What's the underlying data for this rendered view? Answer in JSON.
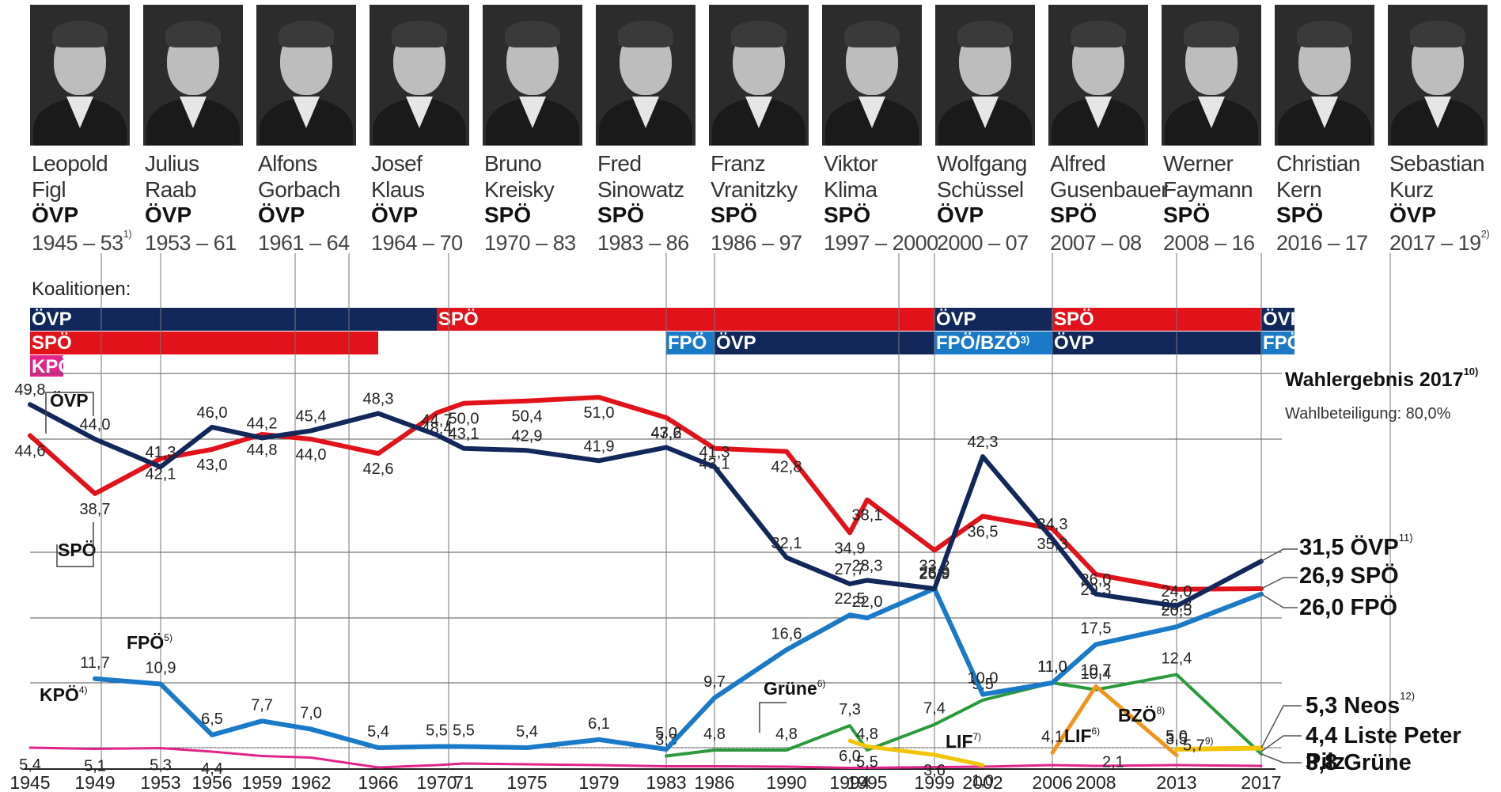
{
  "chancellors": [
    {
      "first": "Leopold",
      "last": "Figl",
      "party": "ÖVP",
      "years": "1945 – 53",
      "note": "1)"
    },
    {
      "first": "Julius",
      "last": "Raab",
      "party": "ÖVP",
      "years": "1953 – 61",
      "note": ""
    },
    {
      "first": "Alfons",
      "last": "Gorbach",
      "party": "ÖVP",
      "years": "1961 – 64",
      "note": ""
    },
    {
      "first": "Josef",
      "last": "Klaus",
      "party": "ÖVP",
      "years": "1964 – 70",
      "note": ""
    },
    {
      "first": "Bruno",
      "last": "Kreisky",
      "party": "SPÖ",
      "years": "1970 – 83",
      "note": ""
    },
    {
      "first": "Fred",
      "last": "Sinowatz",
      "party": "SPÖ",
      "years": "1983 – 86",
      "note": ""
    },
    {
      "first": "Franz",
      "last": "Vranitzky",
      "party": "SPÖ",
      "years": "1986 – 97",
      "note": ""
    },
    {
      "first": "Viktor",
      "last": "Klima",
      "party": "SPÖ",
      "years": "1997 – 2000",
      "note": ""
    },
    {
      "first": "Wolfgang",
      "last": "Schüssel",
      "party": "ÖVP",
      "years": "2000 – 07",
      "note": ""
    },
    {
      "first": "Alfred",
      "last": "Gusenbauer",
      "party": "SPÖ",
      "years": "2007 – 08",
      "note": ""
    },
    {
      "first": "Werner",
      "last": "Faymann",
      "party": "SPÖ",
      "years": "2008 – 16",
      "note": ""
    },
    {
      "first": "Christian",
      "last": "Kern",
      "party": "SPÖ",
      "years": "2016 – 17",
      "note": ""
    },
    {
      "first": "Sebastian",
      "last": "Kurz",
      "party": "ÖVP",
      "years": "2017 – 19",
      "note": "2)"
    }
  ],
  "coalitions": {
    "label": "Koalitionen:",
    "rows": [
      [
        {
          "from": 1945,
          "to": 1970,
          "party": "ÖVP",
          "color": "#13285a"
        },
        {
          "from": 1970,
          "to": 1999,
          "party": "SPÖ",
          "color": "#e2121b"
        },
        {
          "from": 1999,
          "to": 2006,
          "party": "ÖVP",
          "color": "#13285a"
        },
        {
          "from": 2006,
          "to": 2017,
          "party": "SPÖ",
          "color": "#e2121b"
        },
        {
          "from": 2017,
          "to": 2019,
          "party": "ÖVP",
          "color": "#13285a"
        }
      ],
      [
        {
          "from": 1945,
          "to": 1966,
          "party": "SPÖ",
          "color": "#e2121b"
        },
        {
          "from": 1983,
          "to": 1986,
          "party": "FPÖ",
          "color": "#1a7ac7"
        },
        {
          "from": 1986,
          "to": 1999,
          "party": "ÖVP",
          "color": "#13285a"
        },
        {
          "from": 1999,
          "to": 2006,
          "party": "FPÖ/BZÖ",
          "note": "3)",
          "color": "#1a7ac7"
        },
        {
          "from": 2006,
          "to": 2017,
          "party": "ÖVP",
          "color": "#13285a"
        },
        {
          "from": 2017,
          "to": 2019,
          "party": "FPÖ",
          "color": "#1a7ac7"
        }
      ],
      [
        {
          "from": 1945,
          "to": 1949,
          "party": "KPÖ",
          "color": "#e0248a"
        }
      ]
    ]
  },
  "result": {
    "title": "Wahlergebnis 2017",
    "title_note": "10)",
    "turnout": "Wahlbeteiligung: 80,0%",
    "entries": [
      {
        "value": "31,5",
        "party": "ÖVP",
        "note": "11)"
      },
      {
        "value": "26,9",
        "party": "SPÖ",
        "note": ""
      },
      {
        "value": "26,0",
        "party": "FPÖ",
        "note": ""
      },
      {
        "value": "5,3",
        "party": "Neos",
        "note": "12)"
      },
      {
        "value": "4,4",
        "party": "Liste Peter Pilz",
        "note": ""
      },
      {
        "value": "3,8",
        "party": "Grüne",
        "note": ""
      }
    ]
  },
  "chart_data": {
    "type": "line",
    "x_tick_labels": [
      "1945",
      "1949",
      "1953",
      "1956",
      "1959",
      "1962",
      "1966",
      "1970",
      "71",
      "1975",
      "1979",
      "1983",
      "1986",
      "1990",
      "1994",
      "1995",
      "1999",
      "2002",
      "2006",
      "2008",
      "2013",
      "2017"
    ],
    "series": [
      {
        "name": "ÖVP",
        "color": "#13285a",
        "x": [
          1945,
          1949,
          1953,
          1956,
          1959,
          1962,
          1966,
          1970,
          1971,
          1975,
          1979,
          1983,
          1986,
          1990,
          1994,
          1995,
          1999,
          2002,
          2006,
          2008,
          2013,
          2017
        ],
        "values": [
          49.8,
          44.0,
          41.3,
          46.0,
          44.2,
          45.4,
          48.3,
          44.7,
          43.1,
          42.9,
          41.9,
          43.2,
          41.3,
          32.1,
          27.7,
          28.3,
          26.9,
          42.3,
          34.3,
          26.0,
          24.0,
          31.5
        ],
        "labels": [
          "49,8",
          "44,0",
          "41,3",
          "46,0",
          "44,2",
          "45,4",
          "48,3",
          "44,7",
          "43,1",
          "42,9",
          "41,9",
          "43,2",
          "41,3",
          "32,1",
          "27,7",
          "28,3",
          "26,9",
          "42,3",
          "34,3",
          "26,0",
          "24,0",
          ""
        ]
      },
      {
        "name": "SPÖ",
        "color": "#e2121b",
        "x": [
          1945,
          1949,
          1953,
          1956,
          1959,
          1962,
          1966,
          1970,
          1971,
          1975,
          1979,
          1983,
          1986,
          1990,
          1994,
          1995,
          1999,
          2002,
          2006,
          2008,
          2013,
          2017
        ],
        "values": [
          44.6,
          38.7,
          42.1,
          43.0,
          44.8,
          44.0,
          42.6,
          48.4,
          50.0,
          50.4,
          51.0,
          47.6,
          43.1,
          42.8,
          34.9,
          38.1,
          33.2,
          36.5,
          35.3,
          29.3,
          26.8,
          26.9
        ],
        "labels": [
          "44,6",
          "38,7",
          "42,1",
          "43,0",
          "44,8",
          "44,0",
          "42,6",
          "48,4",
          "50,0",
          "50,4",
          "51,0",
          "47,6",
          "43,1",
          "42,8",
          "34,9",
          "38,1",
          "33,2",
          "36,5",
          "35,3",
          "29,3",
          "26,8",
          ""
        ]
      },
      {
        "name": "FPÖ",
        "color": "#1a7ac7",
        "x": [
          1949,
          1953,
          1956,
          1959,
          1962,
          1966,
          1970,
          1971,
          1975,
          1979,
          1983,
          1986,
          1990,
          1994,
          1995,
          1999,
          2002,
          2006,
          2008,
          2013,
          2017
        ],
        "values": [
          11.7,
          10.9,
          6.5,
          7.7,
          7.0,
          5.4,
          5.5,
          5.5,
          5.4,
          6.1,
          5.0,
          9.7,
          16.6,
          22.5,
          22.0,
          26.9,
          10.0,
          11.0,
          17.5,
          20.5,
          26.0
        ],
        "labels": [
          "11,7",
          "10,9",
          "6,5",
          "7,7",
          "7,0",
          "5,4",
          "5,5",
          "5,5",
          "5,4",
          "6,1",
          "5,0",
          "9,7",
          "16,6",
          "22,5",
          "22,0",
          "26,9",
          "10,0",
          "11,0",
          "17,5",
          "20,5",
          ""
        ]
      },
      {
        "name": "KPÖ",
        "color": "#e0248a",
        "x": [
          1945,
          1949,
          1953,
          1956,
          1959,
          1962,
          1966,
          1970,
          1971,
          1975,
          1979,
          1983,
          1986,
          1990,
          1994,
          1995,
          1999,
          2002,
          2006,
          2008,
          2013,
          2017
        ],
        "values": [
          5.4,
          5.1,
          5.3,
          4.4,
          3.3,
          2.9,
          0.4,
          1.0,
          1.4,
          1.2,
          1.0,
          0.7,
          0.7,
          0.6,
          0.3,
          0.3,
          0.5,
          0.6,
          1.0,
          0.8,
          1.0,
          0.8
        ],
        "labels": [
          "5,4",
          "5,1",
          "5,3",
          "4,4",
          "",
          "",
          "",
          "",
          "",
          "",
          "",
          "",
          "",
          "",
          "",
          "",
          "",
          "",
          "",
          "",
          "",
          ""
        ]
      },
      {
        "name": "Grüne",
        "color": "#2a9a3c",
        "x": [
          1983,
          1986,
          1990,
          1994,
          1995,
          1999,
          2002,
          2006,
          2008,
          2013,
          2017
        ],
        "values": [
          3.3,
          4.8,
          4.8,
          7.3,
          4.8,
          7.4,
          9.5,
          11.0,
          10.4,
          12.4,
          3.8
        ],
        "labels": [
          "3,3",
          "4,8",
          "4,8",
          "7,3",
          "4,8",
          "7,4",
          "9,5",
          "11,0",
          "10,4",
          "12,4",
          ""
        ]
      },
      {
        "name": "LIF",
        "color": "#f2c400",
        "x": [
          1994,
          1995,
          1999,
          2002
        ],
        "values": [
          6.0,
          5.5,
          3.6,
          1.0
        ],
        "labels": [
          "6,0",
          "5,5",
          "3,6",
          "1,0"
        ]
      },
      {
        "name": "BZÖ",
        "color": "#f0961e",
        "x": [
          2006,
          2008,
          2013
        ],
        "values": [
          4.1,
          10.7,
          3.5
        ],
        "labels": [
          "4,1",
          "10,7",
          "3,5"
        ]
      },
      {
        "name": "Neos",
        "color": "#f2c400",
        "x": [
          2013,
          2017
        ],
        "values": [
          5.0,
          5.3
        ],
        "labels": [
          "5,0",
          ""
        ]
      }
    ],
    "extra_labels": [
      {
        "text": "2,1",
        "x": 2008,
        "y": 2.1
      },
      {
        "text": "5,7",
        "x": 2013,
        "y": 5.7,
        "note": "9)"
      }
    ],
    "party_labels": [
      {
        "text": "ÖVP",
        "note": ""
      },
      {
        "text": "SPÖ",
        "note": ""
      },
      {
        "text": "FPÖ",
        "note": "5)"
      },
      {
        "text": "KPÖ",
        "note": "4)"
      },
      {
        "text": "Grüne",
        "note": "6)"
      },
      {
        "text": "LIF",
        "note": "7)"
      },
      {
        "text": "LIF",
        "note": "6)"
      },
      {
        "text": "BZÖ",
        "note": "8)"
      }
    ],
    "ylim": [
      0,
      55
    ],
    "grid": true
  }
}
